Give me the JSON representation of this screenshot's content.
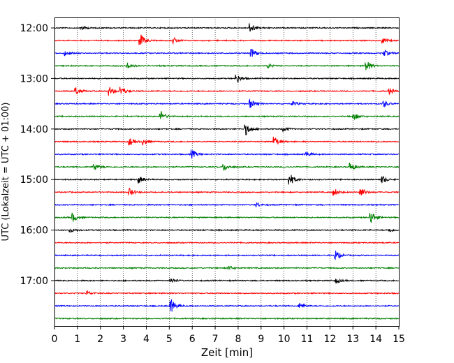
{
  "chart_data": {
    "type": "line",
    "xlabel": "Zeit  [min]",
    "ylabel": "UTC (Lokalzeit = UTC + 01:00)",
    "xlim": [
      0,
      15
    ],
    "x_ticks": [
      0,
      1,
      2,
      3,
      4,
      5,
      6,
      7,
      8,
      9,
      10,
      11,
      12,
      13,
      14,
      15
    ],
    "x_tick_labels": [
      "0",
      "1",
      "2",
      "3",
      "4",
      "5",
      "6",
      "7",
      "8",
      "9",
      "10",
      "11",
      "12",
      "13",
      "14",
      "15"
    ],
    "y_ticks": [
      "12:00",
      "13:00",
      "14:00",
      "15:00",
      "16:00",
      "17:00"
    ],
    "grid": "vertical dotted",
    "colors": [
      "#000000",
      "#ff0000",
      "#0000ff",
      "#008000"
    ],
    "traces": [
      {
        "start": "12:00",
        "color": "#000000",
        "events": [
          {
            "t": 1.2,
            "a": 0.3
          },
          {
            "t": 8.55,
            "a": 0.6
          }
        ]
      },
      {
        "start": "12:15",
        "color": "#ff0000",
        "events": [
          {
            "t": 3.75,
            "a": 0.9
          },
          {
            "t": 5.2,
            "a": 0.4
          },
          {
            "t": 14.3,
            "a": 0.4
          }
        ]
      },
      {
        "start": "12:30",
        "color": "#0000ff",
        "events": [
          {
            "t": 0.5,
            "a": 0.3
          },
          {
            "t": 8.6,
            "a": 0.6
          },
          {
            "t": 14.4,
            "a": 0.4
          }
        ]
      },
      {
        "start": "12:45",
        "color": "#008000",
        "events": [
          {
            "t": 3.2,
            "a": 0.4
          },
          {
            "t": 9.3,
            "a": 0.3
          },
          {
            "t": 13.6,
            "a": 0.8
          }
        ]
      },
      {
        "start": "13:00",
        "color": "#000000",
        "events": [
          {
            "t": 7.95,
            "a": 0.6
          }
        ]
      },
      {
        "start": "13:15",
        "color": "#ff0000",
        "events": [
          {
            "t": 0.95,
            "a": 0.5
          },
          {
            "t": 2.4,
            "a": 0.6
          },
          {
            "t": 2.9,
            "a": 0.6
          },
          {
            "t": 14.6,
            "a": 0.4
          }
        ]
      },
      {
        "start": "13:30",
        "color": "#0000ff",
        "events": [
          {
            "t": 8.55,
            "a": 0.6
          },
          {
            "t": 10.4,
            "a": 0.3
          },
          {
            "t": 14.35,
            "a": 0.5
          }
        ]
      },
      {
        "start": "13:45",
        "color": "#008000",
        "events": [
          {
            "t": 4.65,
            "a": 0.7
          },
          {
            "t": 13.05,
            "a": 0.5
          }
        ]
      },
      {
        "start": "14:00",
        "color": "#000000",
        "events": [
          {
            "t": 8.35,
            "a": 0.8
          },
          {
            "t": 10.0,
            "a": 0.3
          }
        ]
      },
      {
        "start": "14:15",
        "color": "#ff0000",
        "events": [
          {
            "t": 3.3,
            "a": 0.5
          },
          {
            "t": 3.9,
            "a": 0.4
          },
          {
            "t": 9.6,
            "a": 0.7
          }
        ]
      },
      {
        "start": "14:30",
        "color": "#0000ff",
        "events": [
          {
            "t": 6.0,
            "a": 0.6
          },
          {
            "t": 11.0,
            "a": 0.3
          }
        ]
      },
      {
        "start": "14:45",
        "color": "#008000",
        "events": [
          {
            "t": 1.75,
            "a": 0.5
          },
          {
            "t": 7.4,
            "a": 0.5
          },
          {
            "t": 12.9,
            "a": 0.6
          }
        ]
      },
      {
        "start": "15:00",
        "color": "#000000",
        "events": [
          {
            "t": 3.7,
            "a": 0.5
          },
          {
            "t": 10.25,
            "a": 0.9
          },
          {
            "t": 14.3,
            "a": 0.5
          }
        ]
      },
      {
        "start": "15:15",
        "color": "#ff0000",
        "events": [
          {
            "t": 3.3,
            "a": 0.5
          },
          {
            "t": 12.2,
            "a": 0.5
          },
          {
            "t": 13.35,
            "a": 0.7
          }
        ]
      },
      {
        "start": "15:30",
        "color": "#0000ff",
        "events": [
          {
            "t": 8.8,
            "a": 0.3
          }
        ]
      },
      {
        "start": "15:45",
        "color": "#008000",
        "events": [
          {
            "t": 0.8,
            "a": 0.6
          },
          {
            "t": 13.8,
            "a": 0.9
          }
        ]
      },
      {
        "start": "16:00",
        "color": "#000000",
        "events": [
          {
            "t": 0.7,
            "a": 0.3
          },
          {
            "t": 14.6,
            "a": 0.3
          }
        ]
      },
      {
        "start": "16:15",
        "color": "#ff0000",
        "events": []
      },
      {
        "start": "16:30",
        "color": "#0000ff",
        "events": [
          {
            "t": 12.25,
            "a": 0.7
          }
        ]
      },
      {
        "start": "16:45",
        "color": "#008000",
        "events": [
          {
            "t": 7.6,
            "a": 0.3
          }
        ]
      },
      {
        "start": "17:00",
        "color": "#000000",
        "events": [
          {
            "t": 5.1,
            "a": 0.3
          },
          {
            "t": 12.3,
            "a": 0.3
          }
        ]
      },
      {
        "start": "17:15",
        "color": "#ff0000",
        "events": [
          {
            "t": 1.45,
            "a": 0.3
          }
        ]
      },
      {
        "start": "17:30",
        "color": "#0000ff",
        "events": [
          {
            "t": 5.1,
            "a": 0.9
          },
          {
            "t": 10.7,
            "a": 0.4
          }
        ]
      },
      {
        "start": "17:45",
        "color": "#008000",
        "events": []
      }
    ]
  }
}
